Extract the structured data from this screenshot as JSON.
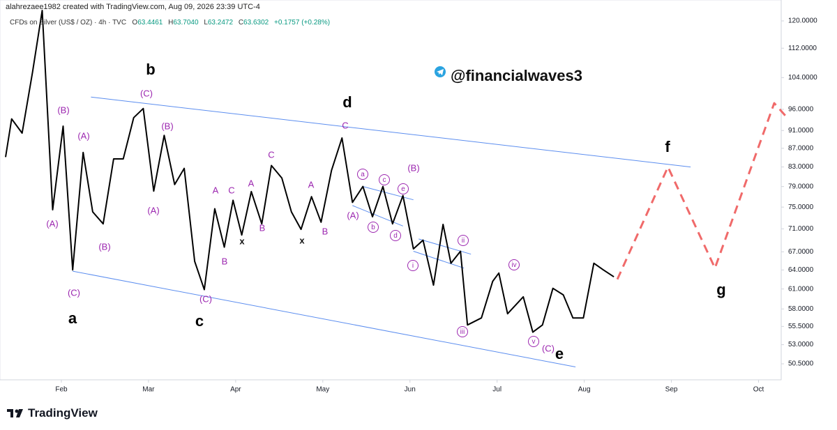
{
  "header": {
    "credit": "alahrezaee1982 created with TradingView.com, Aug 09, 2026 23:39 UTC-4",
    "symbol": "CFDs on Silver (US$ / OZ) · 4h · TVC",
    "ohlc": [
      {
        "label": "O",
        "value": "63.4461"
      },
      {
        "label": "H",
        "value": "63.7040"
      },
      {
        "label": "L",
        "value": "63.2472"
      },
      {
        "label": "C",
        "value": "63.6302"
      }
    ],
    "change": "+0.1757 (+0.28%)"
  },
  "watermark": "@financialwaves3",
  "footer": "TradingView",
  "chart_data": {
    "type": "line",
    "log_scale": true,
    "xlim": [
      1.36,
      10.38
    ],
    "xticks": [
      {
        "value": 2,
        "label": "Feb"
      },
      {
        "value": 3,
        "label": "Mar"
      },
      {
        "value": 4,
        "label": "Apr"
      },
      {
        "value": 5,
        "label": "May"
      },
      {
        "value": 6,
        "label": "Jun"
      },
      {
        "value": 7,
        "label": "Jul"
      },
      {
        "value": 8,
        "label": "Aug"
      },
      {
        "value": 9,
        "label": "Sep"
      },
      {
        "value": 10,
        "label": "Oct"
      }
    ],
    "ylim": [
      48.5,
      126.5
    ],
    "yticks": [
      {
        "value": 120,
        "label": "120.0000"
      },
      {
        "value": 112,
        "label": "112.0000"
      },
      {
        "value": 104,
        "label": "104.0000"
      },
      {
        "value": 96,
        "label": "96.0000"
      },
      {
        "value": 91,
        "label": "91.0000"
      },
      {
        "value": 87,
        "label": "87.0000"
      },
      {
        "value": 83,
        "label": "83.0000"
      },
      {
        "value": 79,
        "label": "79.0000"
      },
      {
        "value": 75,
        "label": "75.0000"
      },
      {
        "value": 71,
        "label": "71.0000"
      },
      {
        "value": 67,
        "label": "67.0000"
      },
      {
        "value": 64,
        "label": "64.0000"
      },
      {
        "value": 61,
        "label": "61.0000"
      },
      {
        "value": 58,
        "label": "58.0000"
      },
      {
        "value": 55.5,
        "label": "55.5000"
      },
      {
        "value": 53,
        "label": "53.0000"
      },
      {
        "value": 50.5,
        "label": "50.5000"
      }
    ],
    "series": [
      {
        "color": "#000000",
        "dashed": false,
        "x": [
          1.36,
          1.43,
          1.55,
          1.67,
          1.78,
          1.9,
          2.02,
          2.13,
          2.25,
          2.36,
          2.48,
          2.6,
          2.71,
          2.83,
          2.94,
          3.06,
          3.18,
          3.3,
          3.41,
          3.53,
          3.64,
          3.76,
          3.87,
          3.97,
          4.07,
          4.18,
          4.3,
          4.41,
          4.53,
          4.64,
          4.75,
          4.87,
          4.98,
          5.1,
          5.22,
          5.34,
          5.46,
          5.57,
          5.69,
          5.8,
          5.92,
          6.04,
          6.15,
          6.27,
          6.38,
          6.47,
          6.58,
          6.66,
          6.82,
          6.95,
          7.02,
          7.12,
          7.3,
          7.41,
          7.52,
          7.64,
          7.76,
          7.87,
          7.99,
          8.11,
          8.22,
          8.34
        ],
        "values": [
          85.1,
          93.7,
          90.4,
          105.5,
          123.2,
          74.5,
          92,
          64,
          86.1,
          74.1,
          71.9,
          84.7,
          84.7,
          94,
          96.2,
          78.1,
          89.9,
          79.4,
          82.7,
          65.4,
          60.9,
          74.7,
          67.8,
          76.3,
          69.9,
          78,
          71.9,
          83.3,
          80.7,
          74.1,
          70.9,
          77,
          72.2,
          82.3,
          89.3,
          75.9,
          79,
          73.2,
          79,
          71.9,
          77.2,
          67.5,
          69,
          61.6,
          71.8,
          65.1,
          67.1,
          55.7,
          56.7,
          62.2,
          63.5,
          57.3,
          59.8,
          54.7,
          55.7,
          61.1,
          60.1,
          56.7,
          56.7,
          65.1,
          64,
          62.9
        ]
      },
      {
        "color": "#f06a6a",
        "dashed": true,
        "x": [
          8.38,
          8.96,
          9.5,
          10.18,
          10.34
        ],
        "values": [
          62.5,
          83,
          64.3,
          97.5,
          93.7
        ]
      }
    ],
    "trendlines": [
      {
        "color": "#5b8def",
        "x": [
          2.34,
          9.22
        ],
        "values": [
          99,
          83
        ]
      },
      {
        "color": "#5b8def",
        "x": [
          2.13,
          7.9
        ],
        "values": [
          63.8,
          50.1
        ]
      },
      {
        "color": "#5b8def",
        "x": [
          5.46,
          6.04
        ],
        "values": [
          79,
          76.4
        ]
      },
      {
        "color": "#5b8def",
        "x": [
          5.34,
          5.92
        ],
        "values": [
          75.3,
          71.5
        ]
      },
      {
        "color": "#5b8def",
        "x": [
          6.1,
          6.7
        ],
        "values": [
          69.2,
          66.6
        ]
      },
      {
        "color": "#5b8def",
        "x": [
          6.04,
          6.62
        ],
        "values": [
          67.1,
          64.3
        ]
      }
    ],
    "annotations": [
      "(C)",
      "(B)",
      "(A)",
      "(A)",
      "(B)",
      "(C)",
      "a",
      "b",
      "(B)",
      "(A)",
      "(C)",
      "c",
      "A",
      "C",
      "B",
      "A",
      "B",
      "x",
      "C",
      "A",
      "x",
      "B",
      "d",
      "C",
      "(A)",
      "(B)",
      "a",
      "b",
      "c",
      "d",
      "e",
      "ii",
      "i",
      "iii",
      "iv",
      "v",
      "(C)",
      "e",
      "f",
      "g"
    ]
  }
}
